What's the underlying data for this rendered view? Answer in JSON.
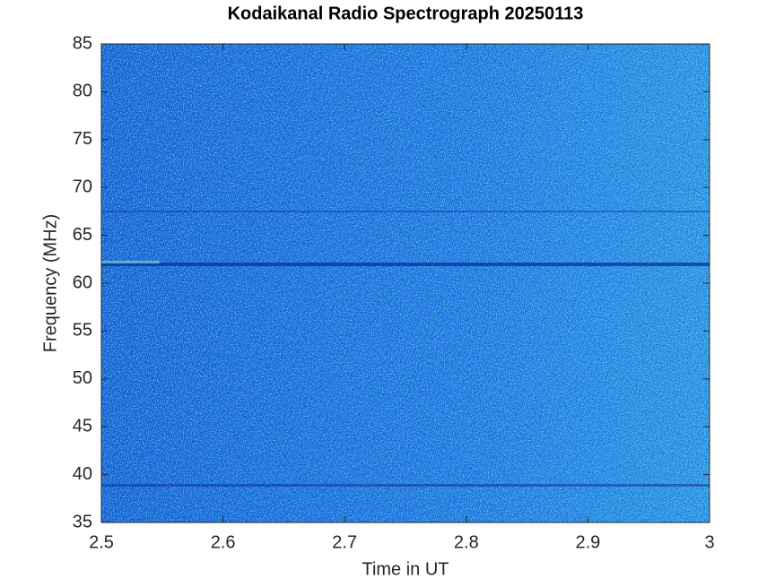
{
  "chart_data": {
    "type": "heatmap",
    "title": "Kodaikanal Radio Spectrograph  20250113",
    "xlabel": "Time in UT",
    "ylabel": "Frequency (MHz)",
    "xlim": [
      2.5,
      3
    ],
    "xticks": [
      2.5,
      2.6,
      2.7,
      2.8,
      2.9,
      3
    ],
    "ylim": [
      35,
      85
    ],
    "yticks": [
      35,
      40,
      45,
      50,
      55,
      60,
      65,
      70,
      75,
      80,
      85
    ]
  }
}
